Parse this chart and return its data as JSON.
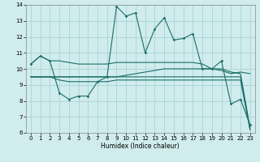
{
  "title": "",
  "xlabel": "Humidex (Indice chaleur)",
  "x": [
    0,
    1,
    2,
    3,
    4,
    5,
    6,
    7,
    8,
    9,
    10,
    11,
    12,
    13,
    14,
    15,
    16,
    17,
    18,
    19,
    20,
    21,
    22,
    23
  ],
  "line_main": [
    10.3,
    10.8,
    10.5,
    8.5,
    8.1,
    8.3,
    8.3,
    9.2,
    9.5,
    13.9,
    13.3,
    13.5,
    11.0,
    12.5,
    13.2,
    11.8,
    11.9,
    12.2,
    10.0,
    10.0,
    10.5,
    7.8,
    8.1,
    6.5
  ],
  "line_flat1": [
    9.5,
    9.5,
    9.5,
    9.5,
    9.5,
    9.5,
    9.5,
    9.5,
    9.5,
    9.5,
    9.6,
    9.7,
    9.8,
    9.9,
    10.0,
    10.0,
    10.0,
    10.0,
    10.0,
    10.0,
    10.0,
    9.8,
    9.7,
    6.3
  ],
  "line_flat2": [
    9.5,
    9.5,
    9.5,
    9.3,
    9.2,
    9.2,
    9.2,
    9.2,
    9.2,
    9.3,
    9.3,
    9.3,
    9.3,
    9.3,
    9.3,
    9.3,
    9.3,
    9.3,
    9.3,
    9.3,
    9.3,
    9.3,
    9.3,
    6.2
  ],
  "line_flat3": [
    9.5,
    9.5,
    9.5,
    9.5,
    9.5,
    9.5,
    9.5,
    9.5,
    9.5,
    9.5,
    9.5,
    9.5,
    9.5,
    9.5,
    9.5,
    9.5,
    9.5,
    9.5,
    9.5,
    9.5,
    9.5,
    9.5,
    9.5,
    6.2
  ],
  "line_top": [
    10.3,
    10.8,
    10.5,
    10.5,
    10.4,
    10.3,
    10.3,
    10.3,
    10.3,
    10.4,
    10.4,
    10.4,
    10.4,
    10.4,
    10.4,
    10.4,
    10.4,
    10.4,
    10.3,
    10.0,
    9.9,
    9.7,
    9.8,
    9.7
  ],
  "color": "#1a6e68",
  "bg_color": "#d0ecec",
  "grid_color": "#a8d4d4",
  "ylim": [
    6,
    14
  ],
  "yticks": [
    6,
    7,
    8,
    9,
    10,
    11,
    12,
    13,
    14
  ],
  "xlim": [
    -0.5,
    23.5
  ],
  "xticks": [
    0,
    1,
    2,
    3,
    4,
    5,
    6,
    7,
    8,
    9,
    10,
    11,
    12,
    13,
    14,
    15,
    16,
    17,
    18,
    19,
    20,
    21,
    22,
    23
  ]
}
